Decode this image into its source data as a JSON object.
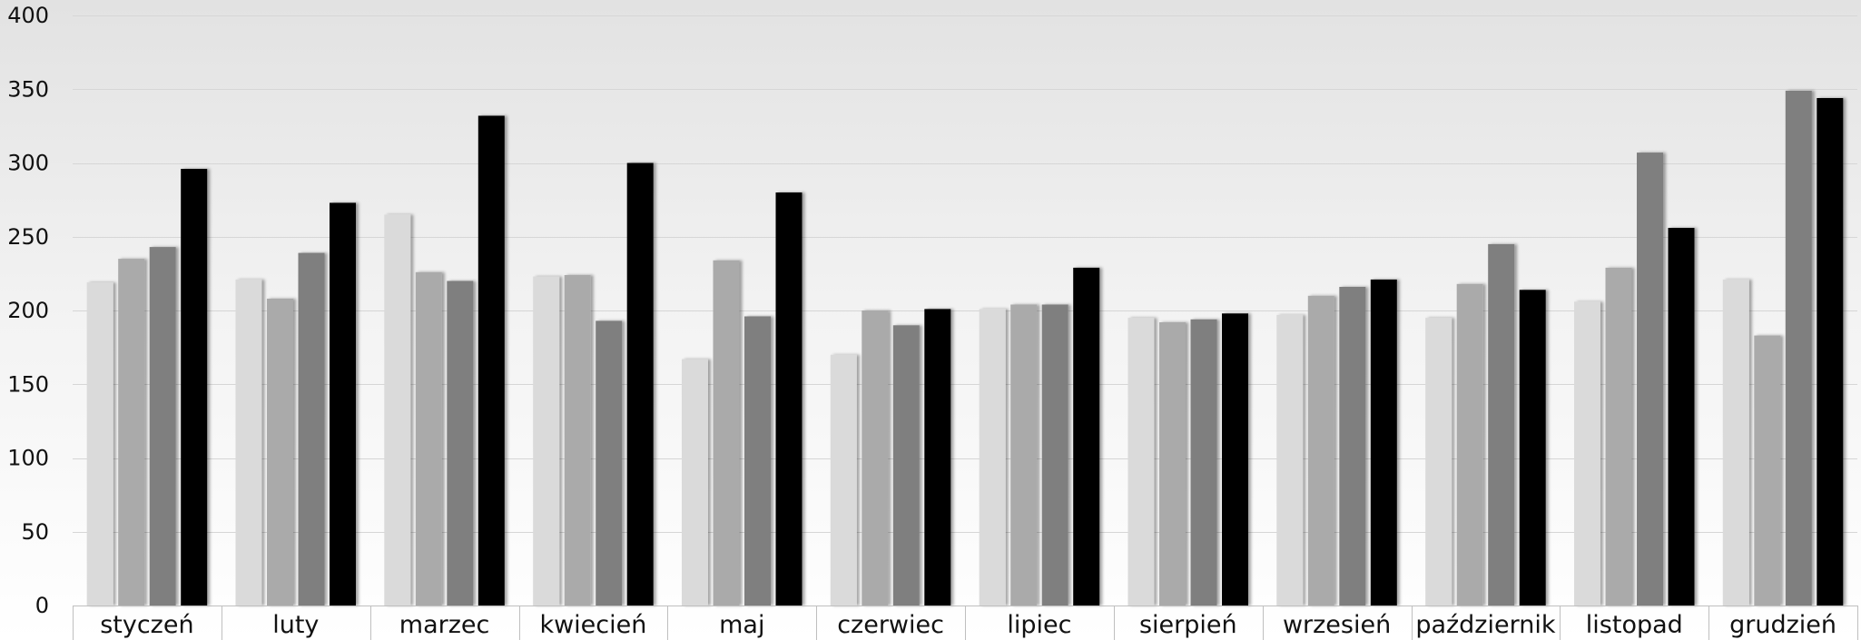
{
  "chart_data": {
    "type": "bar",
    "title": "",
    "xlabel": "",
    "ylabel": "",
    "ylim": [
      0,
      400
    ],
    "yticks": [
      0,
      50,
      100,
      150,
      200,
      250,
      300,
      350,
      400
    ],
    "grid": true,
    "legend": "none",
    "categories": [
      "styczeń",
      "luty",
      "marzec",
      "kwiecień",
      "maj",
      "czerwiec",
      "lipiec",
      "sierpień",
      "wrzesień",
      "październik",
      "listopad",
      "grudzień"
    ],
    "series": [
      {
        "color": "#dadada",
        "values": [
          219,
          221,
          265,
          223,
          167,
          170,
          201,
          195,
          197,
          195,
          206,
          221
        ]
      },
      {
        "color": "#aaaaaa",
        "values": [
          235,
          208,
          226,
          224,
          234,
          200,
          204,
          192,
          210,
          218,
          229,
          183
        ]
      },
      {
        "color": "#7f7f7f",
        "values": [
          243,
          239,
          220,
          193,
          196,
          190,
          204,
          194,
          216,
          245,
          307,
          349
        ]
      },
      {
        "color": "#000000",
        "values": [
          296,
          273,
          332,
          300,
          280,
          201,
          229,
          198,
          221,
          214,
          256,
          344
        ]
      }
    ]
  }
}
